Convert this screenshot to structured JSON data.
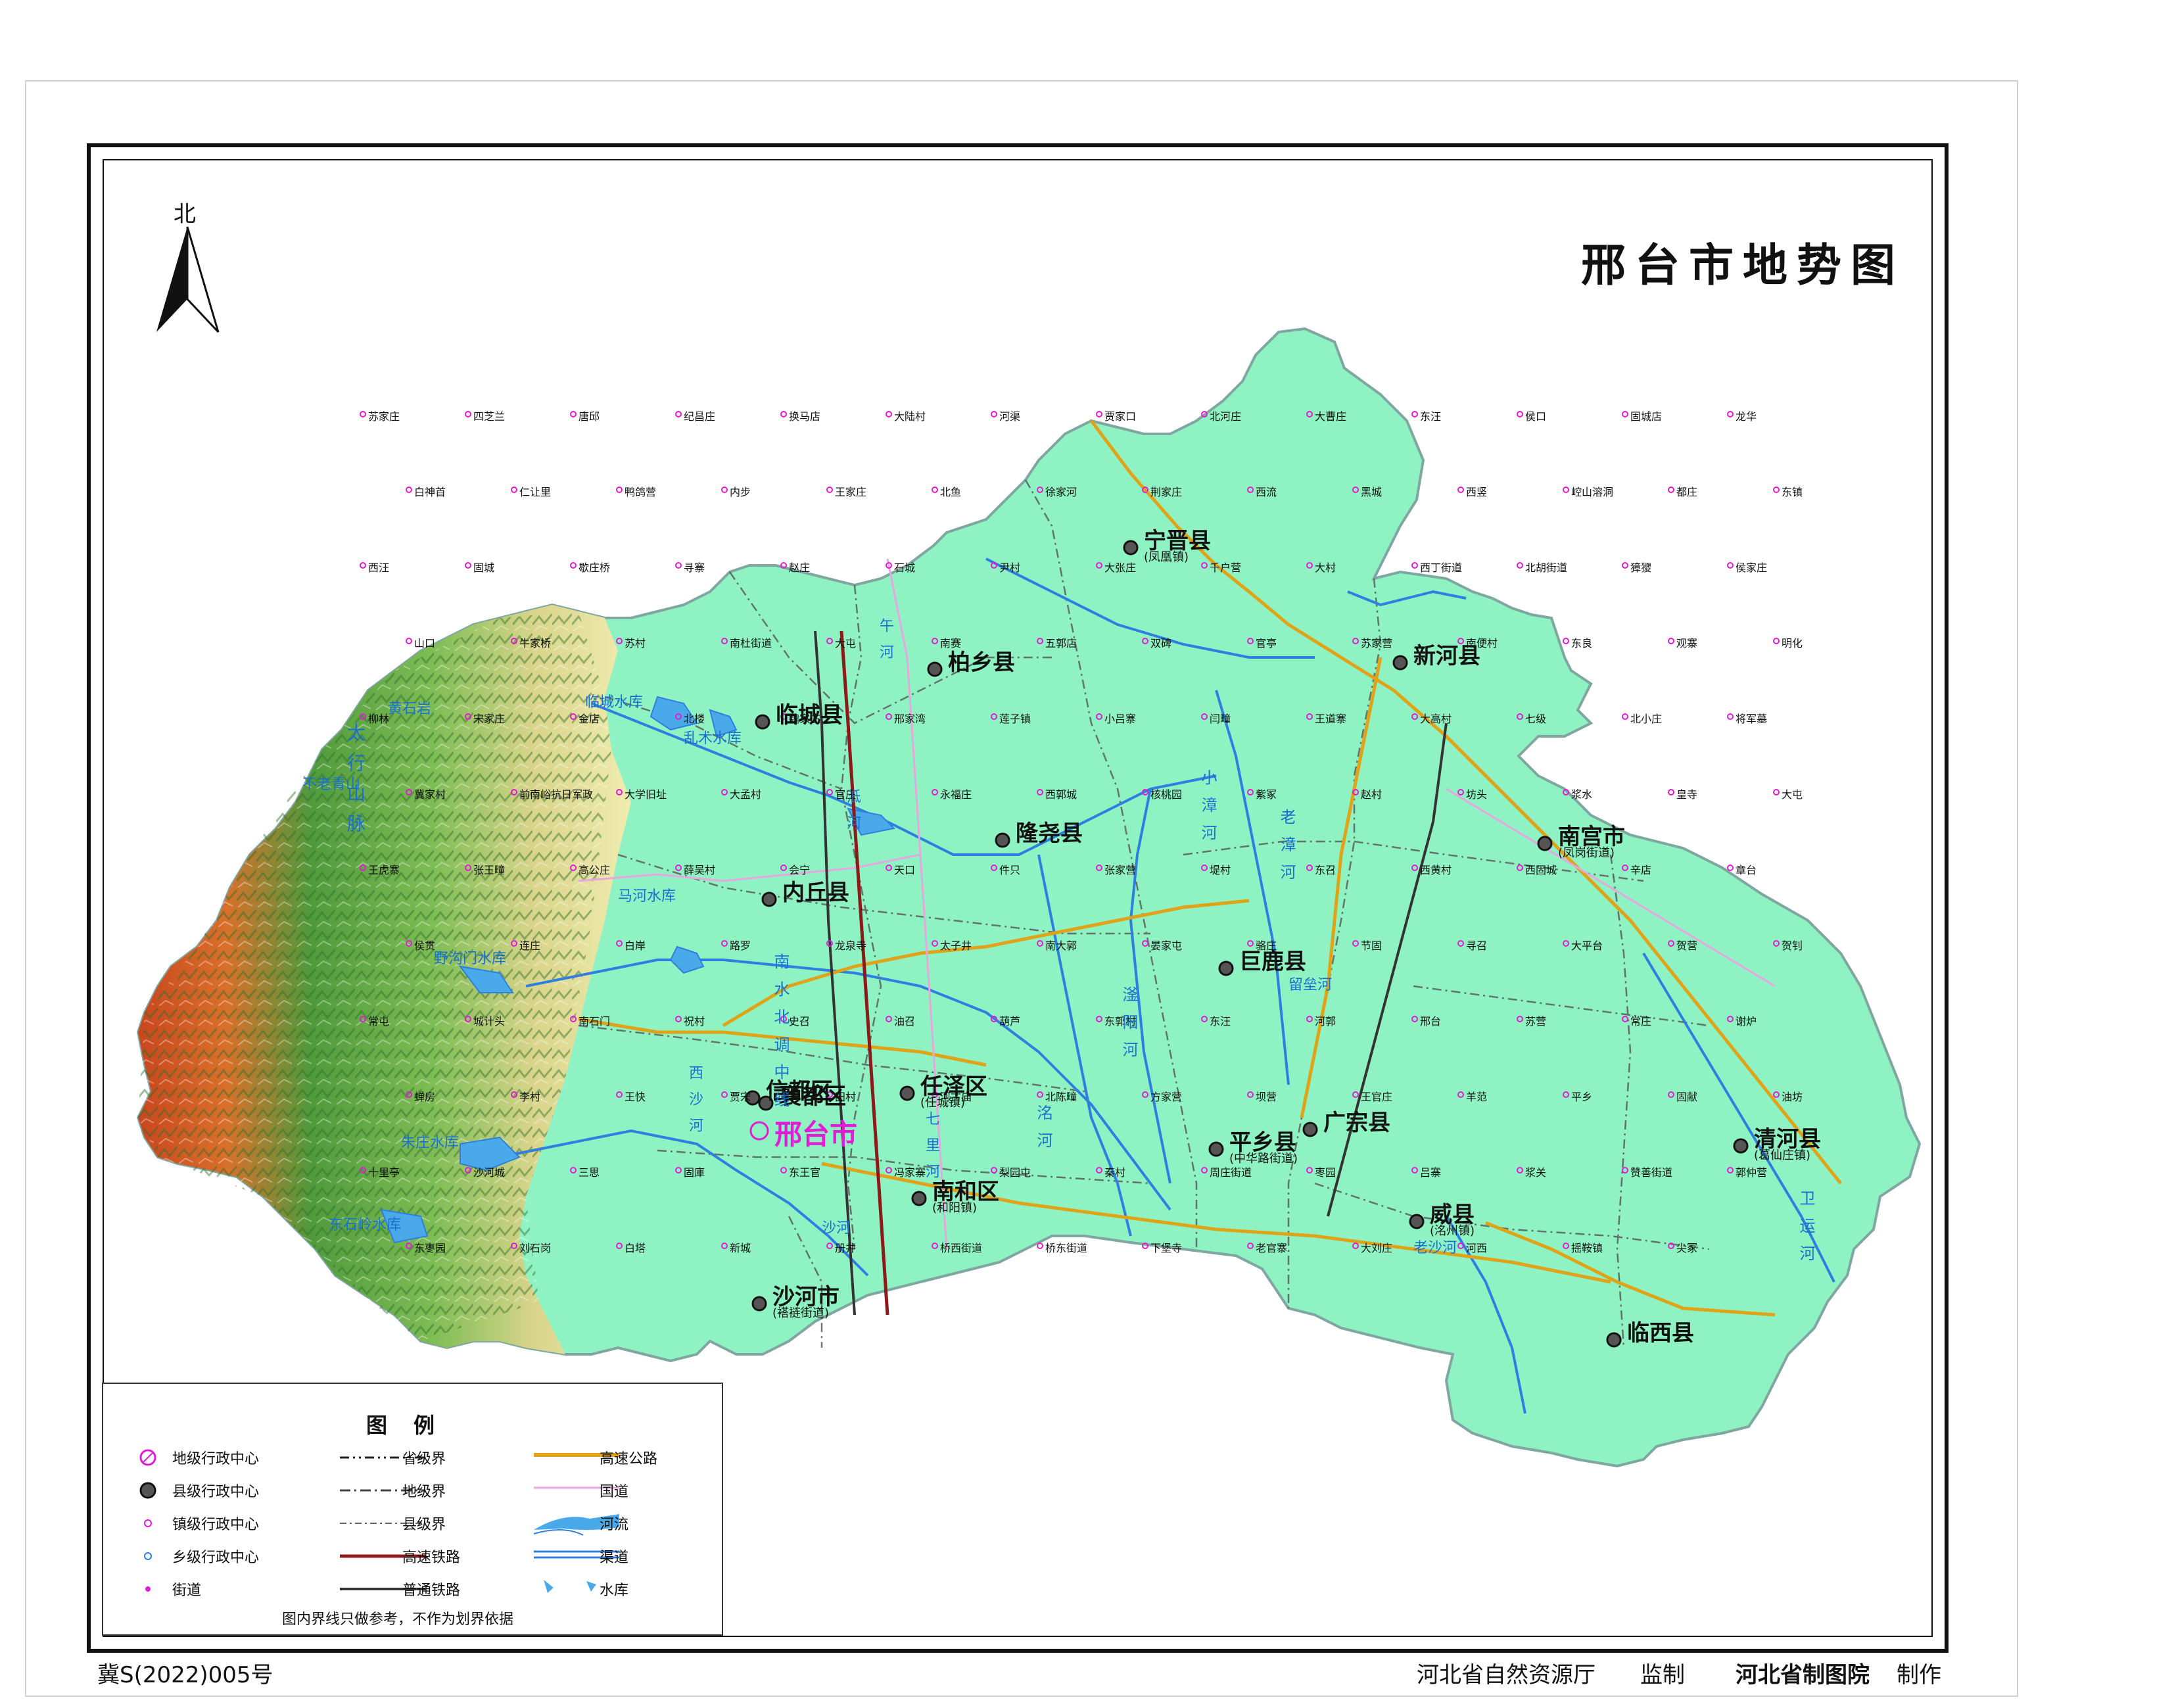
{
  "title": "邢台市地势图",
  "north_label": "北",
  "colors": {
    "plain": "#8ef2c2",
    "river": "#2f7fe0",
    "lake": "#4aa9e8",
    "highway": "#e0a317",
    "national_road": "#e7a6df",
    "prefecture_label": "#e21bd6"
  },
  "prefecture": {
    "name": "邢台市"
  },
  "counties": [
    {
      "name": "宁晋县",
      "sub": "(凤凰镇)"
    },
    {
      "name": "柏乡县",
      "sub": ""
    },
    {
      "name": "临城县",
      "sub": ""
    },
    {
      "name": "新河县",
      "sub": ""
    },
    {
      "name": "隆尧县",
      "sub": ""
    },
    {
      "name": "内丘县",
      "sub": ""
    },
    {
      "name": "南宫市",
      "sub": "(凤岗街道)"
    },
    {
      "name": "巨鹿县",
      "sub": ""
    },
    {
      "name": "信都区",
      "sub": ""
    },
    {
      "name": "襄都区",
      "sub": ""
    },
    {
      "name": "任泽区",
      "sub": "(任城镇)"
    },
    {
      "name": "南和区",
      "sub": "(和阳镇)"
    },
    {
      "name": "广宗县",
      "sub": ""
    },
    {
      "name": "平乡县",
      "sub": "(中华路街道)"
    },
    {
      "name": "清河县",
      "sub": "(葛仙庄镇)"
    },
    {
      "name": "威县",
      "sub": "(洺州镇)"
    },
    {
      "name": "沙河市",
      "sub": "(褡裢街道)"
    },
    {
      "name": "临西县",
      "sub": ""
    }
  ],
  "towns": [
    "苏家庄",
    "四芝兰",
    "唐邱",
    "纪昌庄",
    "换马店",
    "大陆村",
    "河渠",
    "贾家口",
    "北河庄",
    "大曹庄",
    "东汪",
    "侯口",
    "固城店",
    "龙华",
    "白神首",
    "仁让里",
    "鸭鸽营",
    "内步",
    "王家庄",
    "北鱼",
    "徐家河",
    "荆家庄",
    "西流",
    "黑城",
    "西竖",
    "崆山溶洞",
    "都庄",
    "东镇",
    "西汪",
    "固城",
    "歇庄桥",
    "寻寨",
    "赵庄",
    "石城",
    "尹村",
    "大张庄",
    "千户营",
    "大村",
    "西丁街道",
    "北胡街道",
    "獐獿",
    "侯家庄",
    "山口",
    "牛家桥",
    "苏村",
    "南杜街道",
    "大屯",
    "南赛",
    "五郭店",
    "双碑",
    "官亭",
    "苏家营",
    "南便村",
    "东良",
    "观寨",
    "明化",
    "柳林",
    "宋家庄",
    "金店",
    "北楼",
    "魏家庄",
    "邢家湾",
    "莲子镇",
    "小吕寨",
    "闫疃",
    "王道寨",
    "大高村",
    "七级",
    "北小庄",
    "将军墓",
    "冀家村",
    "前南峪抗日军政",
    "大学旧址",
    "大孟村",
    "官庄",
    "永福庄",
    "西郭城",
    "核桃园",
    "紫冢",
    "赵村",
    "坊头",
    "浆水",
    "皇寺",
    "大屯",
    "王虎寨",
    "张王疃",
    "高公庄",
    "薛吴村",
    "会宁",
    "天口",
    "件只",
    "张家营",
    "堤村",
    "东召",
    "西黄村",
    "西固城",
    "辛店",
    "章台",
    "侯贯",
    "连庄",
    "白岸",
    "路罗",
    "龙泉寺",
    "太子井",
    "南大郭",
    "晏家屯",
    "骆庄",
    "节固",
    "寻召",
    "大平台",
    "贺营",
    "贺钊",
    "常屯",
    "城计头",
    "南石门",
    "祝村",
    "史召",
    "油召",
    "葫芦",
    "东郭村",
    "东汪",
    "河郭",
    "邢台",
    "苏营",
    "常庄",
    "谢炉",
    "蝉房",
    "李村",
    "王快",
    "贾宋",
    "田村",
    "河古庙",
    "北陈疃",
    "方家营",
    "坝营",
    "王官庄",
    "羊范",
    "平乡",
    "固献",
    "油坊",
    "十里亭",
    "沙河城",
    "三思",
    "固庫",
    "东王官",
    "冯家寨",
    "梨园屯",
    "秦村",
    "周庄街道",
    "枣园",
    "吕寨",
    "浆关",
    "赞善街道",
    "郭仲营",
    "东枣园",
    "刘石岗",
    "白塔",
    "新城",
    "册井",
    "桥西街道",
    "桥东街道",
    "下堡寺",
    "老官寨",
    "大刘庄",
    "河西",
    "摇鞍镇",
    "尖冢"
  ],
  "features": [
    "临城水库",
    "乱木水库",
    "马河水库",
    "野沟门水库",
    "朱庄水库",
    "东石岭水库",
    "南水北调中线",
    "沙河",
    "小漳河",
    "老漳河",
    "滏阳河",
    "洺河",
    "七里河",
    "卫运河",
    "老沙河",
    "西沙河",
    "留垒河",
    "午河",
    "泜河",
    "太行山脉",
    "黄石岩",
    "不老青山"
  ],
  "legend": {
    "title": "图例",
    "items": [
      {
        "label": "地级行政中心"
      },
      {
        "label": "省级界"
      },
      {
        "label": "高速公路"
      },
      {
        "label": "县级行政中心"
      },
      {
        "label": "地级界"
      },
      {
        "label": "国道"
      },
      {
        "label": "镇级行政中心"
      },
      {
        "label": "县级界"
      },
      {
        "label": "河流"
      },
      {
        "label": "乡级行政中心"
      },
      {
        "label": "高速铁路"
      },
      {
        "label": "渠道"
      },
      {
        "label": "街道"
      },
      {
        "label": "普通铁路"
      },
      {
        "label": "水库"
      }
    ],
    "note": "图内界线只做参考，不作为划界依据"
  },
  "footer": {
    "map_number": "冀S(2022)005号",
    "supervisor": "河北省自然资源厅",
    "supervisor_role": "监制",
    "producer": "河北省制图院",
    "producer_role": "制作"
  }
}
